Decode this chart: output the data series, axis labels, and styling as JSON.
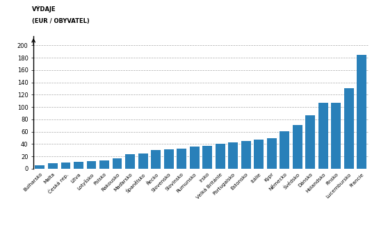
{
  "categories": [
    "Bulharsko",
    "Malta",
    "Česká rep.",
    "Litva",
    "Lotyšsko",
    "Polsko",
    "Rakousko",
    "Maďarsko",
    "Španělsko",
    "Řecko",
    "Slovensko",
    "Slovinsko",
    "Rumunsko",
    "Irsko",
    "Velká Británie",
    "Portugalsko",
    "Estonsko",
    "Itálie",
    "Kypr",
    "Německo",
    "Švédsko",
    "Dánsko",
    "Holandsko",
    "Finsko",
    "Lucembursko",
    "Francie"
  ],
  "values": [
    5,
    9,
    10,
    11,
    12,
    13,
    17,
    24,
    25,
    30,
    31,
    32,
    36,
    37,
    40,
    43,
    45,
    47,
    50,
    61,
    71,
    87,
    107,
    107,
    131,
    185
  ],
  "bar_color": "#2980b9",
  "ylabel_line1": "VÝDAJE",
  "ylabel_line2": "(EUR / OBYVATEL)",
  "ylim": [
    0,
    215
  ],
  "yticks": [
    0,
    20,
    40,
    60,
    80,
    100,
    120,
    140,
    160,
    180,
    200
  ],
  "grid_color": "#aaaaaa",
  "axis_color": "#000000",
  "label_fontsize": 5.2,
  "ylabel_fontsize": 6.0,
  "tick_fontsize": 6.0
}
